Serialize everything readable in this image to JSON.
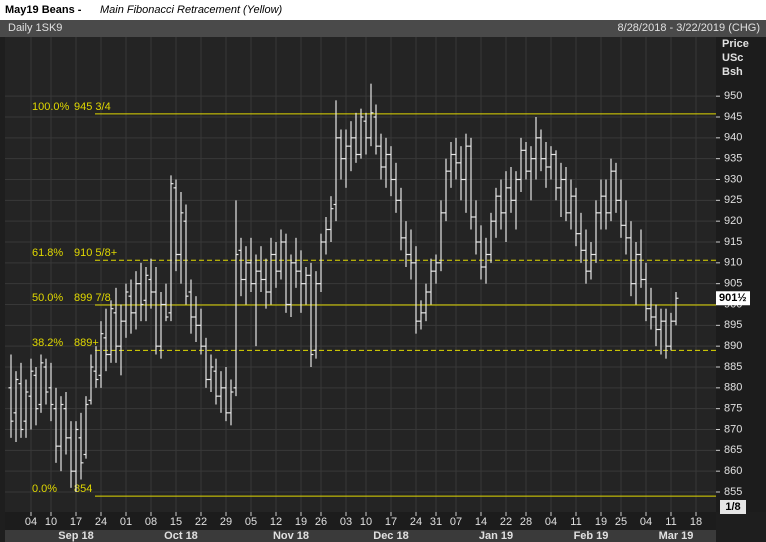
{
  "chart_data": {
    "type": "ohlc",
    "title": "May19 Beans -",
    "subtitle": "Main Fibonacci Retracement (Yellow)",
    "symbol": "Daily 1SK9",
    "date_range": "8/28/2018 - 3/22/2019 (CHG)",
    "y_axis_label": [
      "Price",
      "USc",
      "Bsh"
    ],
    "tick_size": "1/8",
    "color": "#e6e6e6",
    "fib_color": "#e0d800",
    "grid": true,
    "ylim": [
      850.2,
      964.2
    ],
    "yticks": [
      855,
      860,
      865,
      870,
      875,
      880,
      885,
      890,
      895,
      900,
      905,
      910,
      915,
      920,
      925,
      930,
      935,
      940,
      945,
      950
    ],
    "xlim": [
      -1.2,
      141
    ],
    "xticks": [
      {
        "value": 4,
        "label": "04"
      },
      {
        "value": 8,
        "label": "10"
      },
      {
        "value": 13,
        "label": "17"
      },
      {
        "value": 18,
        "label": "24"
      },
      {
        "value": 23,
        "label": "01"
      },
      {
        "value": 28,
        "label": "08"
      },
      {
        "value": 33,
        "label": "15"
      },
      {
        "value": 38,
        "label": "22"
      },
      {
        "value": 43,
        "label": "29"
      },
      {
        "value": 48,
        "label": "05"
      },
      {
        "value": 53,
        "label": "12"
      },
      {
        "value": 58,
        "label": "19"
      },
      {
        "value": 62,
        "label": "26"
      },
      {
        "value": 67,
        "label": "03"
      },
      {
        "value": 71,
        "label": "10"
      },
      {
        "value": 76,
        "label": "17"
      },
      {
        "value": 81,
        "label": "24"
      },
      {
        "value": 85,
        "label": "31"
      },
      {
        "value": 89,
        "label": "07"
      },
      {
        "value": 94,
        "label": "14"
      },
      {
        "value": 99,
        "label": "22"
      },
      {
        "value": 103,
        "label": "28"
      },
      {
        "value": 108,
        "label": "04"
      },
      {
        "value": 113,
        "label": "11"
      },
      {
        "value": 118,
        "label": "19"
      },
      {
        "value": 122,
        "label": "25"
      },
      {
        "value": 127,
        "label": "04"
      },
      {
        "value": 132,
        "label": "11"
      },
      {
        "value": 137,
        "label": "18"
      }
    ],
    "month_ticks": [
      {
        "value": 13,
        "label": "Sep 18"
      },
      {
        "value": 34,
        "label": "Oct 18"
      },
      {
        "value": 56,
        "label": "Nov 18"
      },
      {
        "value": 76,
        "label": "Dec 18"
      },
      {
        "value": 97,
        "label": "Jan 19"
      },
      {
        "value": 116,
        "label": "Feb 19"
      },
      {
        "value": 133,
        "label": "Mar 19"
      }
    ],
    "fib_levels": [
      {
        "pct": "100.0%",
        "value": 945.75,
        "label": "945 3/4",
        "style": "solid"
      },
      {
        "pct": "61.8%",
        "value": 910.625,
        "label": "910 5/8+",
        "style": "dashed"
      },
      {
        "pct": "50.0%",
        "value": 899.875,
        "label": "899 7/8",
        "style": "solid"
      },
      {
        "pct": "38.2%",
        "value": 889,
        "label": "889+",
        "style": "dashed"
      },
      {
        "pct": "0.0%",
        "value": 854,
        "label": "854",
        "style": "solid"
      }
    ],
    "last_price": {
      "value": 901.5,
      "label": "901½"
    },
    "bars": [
      [
        880,
        888,
        868,
        872
      ],
      [
        874,
        884,
        867,
        882
      ],
      [
        881,
        886,
        868,
        870
      ],
      [
        872,
        882,
        868,
        879
      ],
      [
        878,
        887,
        870,
        884
      ],
      [
        883,
        885,
        871,
        875
      ],
      [
        876,
        888,
        874,
        886
      ],
      [
        885,
        887,
        876,
        879
      ],
      [
        880,
        886,
        872,
        876
      ],
      [
        875,
        880,
        862,
        866
      ],
      [
        866,
        878,
        860,
        876
      ],
      [
        875,
        879,
        864,
        868
      ],
      [
        868,
        872,
        856,
        860
      ],
      [
        860,
        872,
        855,
        870
      ],
      [
        868,
        874,
        858,
        862
      ],
      [
        864,
        878,
        863,
        876
      ],
      [
        877,
        888,
        876,
        885
      ],
      [
        884,
        890,
        880,
        882
      ],
      [
        883,
        896,
        880,
        893
      ],
      [
        892,
        899,
        884,
        888
      ],
      [
        888,
        901,
        886,
        899
      ],
      [
        898,
        904,
        886,
        890
      ],
      [
        890,
        900,
        883,
        896
      ],
      [
        896,
        905,
        892,
        903
      ],
      [
        902,
        906,
        893,
        898
      ],
      [
        898,
        908,
        894,
        905
      ],
      [
        905,
        910,
        896,
        900
      ],
      [
        901,
        909,
        896,
        907
      ],
      [
        906,
        911,
        899,
        903
      ],
      [
        903,
        909,
        888,
        890
      ],
      [
        890,
        903,
        887,
        900
      ],
      [
        900,
        905,
        896,
        897
      ],
      [
        898,
        931,
        896,
        929
      ],
      [
        928,
        930,
        908,
        912
      ],
      [
        912,
        927,
        905,
        922
      ],
      [
        920,
        924,
        900,
        902
      ],
      [
        903,
        906,
        893,
        897
      ],
      [
        897,
        902,
        891,
        895
      ],
      [
        895,
        899,
        888,
        890
      ],
      [
        890,
        892,
        880,
        882
      ],
      [
        882,
        888,
        879,
        885
      ],
      [
        884,
        887,
        876,
        878
      ],
      [
        878,
        884,
        874,
        880
      ],
      [
        880,
        885,
        872,
        874
      ],
      [
        874,
        882,
        871,
        879
      ],
      [
        880,
        925,
        878,
        912
      ],
      [
        913,
        916,
        902,
        906
      ],
      [
        906,
        914,
        900,
        910
      ],
      [
        910,
        916,
        903,
        905
      ],
      [
        905,
        912,
        890,
        908
      ],
      [
        908,
        914,
        903,
        906
      ],
      [
        906,
        911,
        899,
        903
      ],
      [
        903,
        916,
        900,
        912
      ],
      [
        912,
        915,
        904,
        908
      ],
      [
        908,
        918,
        906,
        915
      ],
      [
        915,
        917,
        898,
        900
      ],
      [
        900,
        912,
        897,
        910
      ],
      [
        910,
        916,
        904,
        908
      ],
      [
        908,
        913,
        898,
        905
      ],
      [
        905,
        909,
        900,
        907
      ],
      [
        907,
        910,
        885,
        888
      ],
      [
        889,
        908,
        887,
        905
      ],
      [
        905,
        917,
        903,
        915
      ],
      [
        915,
        921,
        912,
        918
      ],
      [
        918,
        926,
        915,
        923
      ],
      [
        924,
        949,
        920,
        940
      ],
      [
        940,
        942,
        930,
        935
      ],
      [
        935,
        942,
        928,
        938
      ],
      [
        938,
        944,
        932,
        940
      ],
      [
        940,
        946,
        934,
        936
      ],
      [
        936,
        947,
        935,
        945
      ],
      [
        944,
        946,
        936,
        940
      ],
      [
        940,
        953,
        938,
        946
      ],
      [
        945,
        948,
        936,
        938
      ],
      [
        938,
        941,
        930,
        933
      ],
      [
        933,
        940,
        928,
        936
      ],
      [
        936,
        938,
        926,
        930
      ],
      [
        930,
        934,
        922,
        925
      ],
      [
        925,
        928,
        913,
        916
      ],
      [
        916,
        920,
        909,
        912
      ],
      [
        912,
        918,
        906,
        910
      ],
      [
        910,
        914,
        893,
        896
      ],
      [
        896,
        901,
        894,
        898
      ],
      [
        898,
        905,
        896,
        903
      ],
      [
        903,
        911,
        900,
        908
      ],
      [
        908,
        912,
        905,
        910
      ],
      [
        910,
        925,
        908,
        922
      ],
      [
        922,
        935,
        920,
        932
      ],
      [
        932,
        939,
        928,
        936
      ],
      [
        936,
        940,
        930,
        934
      ],
      [
        934,
        938,
        925,
        930
      ],
      [
        930,
        941,
        922,
        938
      ],
      [
        938,
        940,
        918,
        921
      ],
      [
        921,
        925,
        912,
        915
      ],
      [
        915,
        919,
        906,
        909
      ],
      [
        909,
        916,
        905,
        912
      ],
      [
        912,
        922,
        910,
        920
      ],
      [
        920,
        928,
        916,
        926
      ],
      [
        926,
        930,
        918,
        922
      ],
      [
        922,
        932,
        915,
        928
      ],
      [
        928,
        933,
        922,
        925
      ],
      [
        925,
        932,
        918,
        930
      ],
      [
        930,
        940,
        927,
        937
      ],
      [
        937,
        939,
        930,
        932
      ],
      [
        932,
        938,
        925,
        935
      ],
      [
        935,
        945,
        930,
        940
      ],
      [
        940,
        942,
        932,
        935
      ],
      [
        935,
        939,
        928,
        933
      ],
      [
        933,
        938,
        930,
        936
      ],
      [
        936,
        937,
        925,
        928
      ],
      [
        928,
        934,
        921,
        930
      ],
      [
        930,
        933,
        920,
        922
      ],
      [
        922,
        930,
        918,
        926
      ],
      [
        926,
        928,
        914,
        917
      ],
      [
        917,
        922,
        910,
        913
      ],
      [
        913,
        918,
        905,
        908
      ],
      [
        908,
        915,
        906,
        912
      ],
      [
        912,
        925,
        910,
        922
      ],
      [
        922,
        930,
        918,
        926
      ],
      [
        926,
        930,
        918,
        922
      ],
      [
        922,
        935,
        920,
        932
      ],
      [
        932,
        934,
        922,
        925
      ],
      [
        925,
        930,
        916,
        919
      ],
      [
        919,
        925,
        912,
        916
      ],
      [
        916,
        920,
        902,
        905
      ],
      [
        905,
        915,
        900,
        912
      ],
      [
        912,
        918,
        904,
        906
      ],
      [
        906,
        910,
        896,
        899
      ],
      [
        899,
        904,
        894,
        897
      ],
      [
        897,
        900,
        890,
        894
      ],
      [
        894,
        899,
        888,
        896
      ],
      [
        896,
        899,
        887,
        890
      ],
      [
        890,
        898,
        889,
        896
      ],
      [
        896,
        903,
        895,
        901.5
      ]
    ]
  }
}
